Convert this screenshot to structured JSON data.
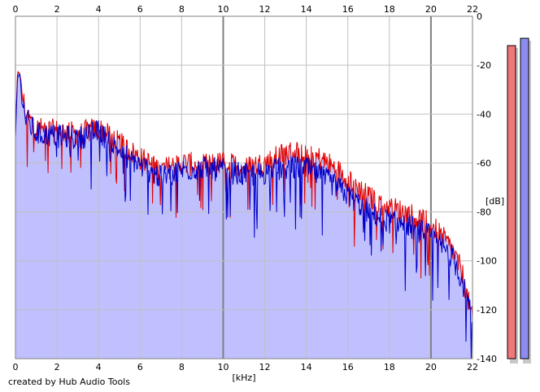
{
  "credit": "created by Hub Audio Tools",
  "colors": {
    "fill": "#c0c0ff",
    "left_channel": "#e00000",
    "right_channel": "#0000c8",
    "grid_minor": "#c0c0c0",
    "grid_major": "#808080",
    "meter_left": "#f07878",
    "meter_right": "#8c8cf0"
  },
  "chart_data": {
    "type": "line",
    "xlabel": "[kHz]",
    "ylabel": "[dB]",
    "xlim": [
      0,
      22
    ],
    "ylim": [
      -140,
      0
    ],
    "x_ticks": [
      "0",
      "2",
      "4",
      "6",
      "8",
      "10",
      "12",
      "14",
      "16",
      "18",
      "20",
      "22"
    ],
    "y_ticks": [
      "0",
      "-20",
      "-40",
      "-60",
      "-80",
      "-100",
      "-120",
      "-140"
    ],
    "x_ticks_top": true,
    "grid": true,
    "series": [
      {
        "channel": "left",
        "color": "#e00000",
        "x": [
          0,
          0.1,
          0.2,
          0.3,
          0.5,
          1,
          2,
          3,
          4,
          5,
          6,
          7,
          8,
          9,
          10,
          11,
          12,
          13,
          14,
          15,
          16,
          17,
          18,
          19,
          20,
          21,
          21.5,
          22
        ],
        "y": [
          -48,
          -24,
          -22,
          -30,
          -40,
          -46,
          -47,
          -48,
          -46,
          -52,
          -58,
          -63,
          -60,
          -61,
          -60,
          -62,
          -60,
          -56,
          -55,
          -60,
          -66,
          -74,
          -78,
          -81,
          -85,
          -95,
          -105,
          -125
        ]
      },
      {
        "channel": "right",
        "color": "#0000c8",
        "x": [
          0,
          0.1,
          0.2,
          0.3,
          0.5,
          1,
          2,
          3,
          4,
          5,
          6,
          7,
          8,
          9,
          10,
          11,
          12,
          13,
          14,
          15,
          16,
          17,
          18,
          19,
          20,
          21,
          21.5,
          22
        ],
        "y": [
          -50,
          -25,
          -23,
          -32,
          -42,
          -48,
          -49,
          -50,
          -47,
          -55,
          -61,
          -66,
          -63,
          -62,
          -63,
          -65,
          -64,
          -62,
          -62,
          -67,
          -73,
          -80,
          -84,
          -86,
          -90,
          -98,
          -108,
          -125
        ]
      }
    ],
    "meters": [
      {
        "channel": "left",
        "level_db": -12
      },
      {
        "channel": "right",
        "level_db": -9
      }
    ]
  }
}
